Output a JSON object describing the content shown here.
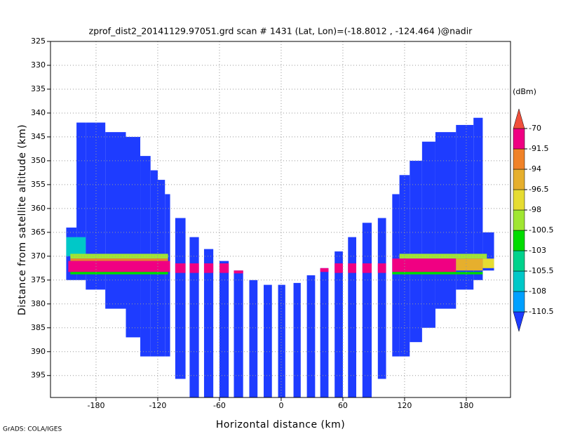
{
  "chart_data": {
    "type": "field",
    "title": "zprof_dist2_20141129.97051.grd  scan # 1431  (Lat, Lon)=(-18.8012 , -124.464 )@nadir",
    "xlabel": "Horizontal distance (km)",
    "ylabel": "Distance from satellite altitude (km)",
    "footer": "GrADS: COLA/IGES",
    "xlim": [
      -224.3,
      223
    ],
    "ylim": [
      399.6,
      325
    ],
    "xticks": [
      -180,
      -120,
      -60,
      0,
      60,
      120,
      180
    ],
    "yticks": [
      325,
      330,
      335,
      340,
      345,
      350,
      355,
      360,
      365,
      370,
      375,
      380,
      385,
      390,
      395
    ],
    "grid": true,
    "colorbar": {
      "unit": "(dBm)",
      "levels": [
        -110.5,
        -108,
        -105.5,
        -103,
        -100.5,
        -98,
        -96.5,
        -94,
        -91.5,
        -70
      ],
      "colors": [
        "#1e3cff",
        "#00a0ff",
        "#00c8c8",
        "#00d28c",
        "#00dc00",
        "#a0e632",
        "#e6dc32",
        "#e6af2d",
        "#f08228",
        "#f00082",
        "#f0503c"
      ]
    },
    "cells": [
      {
        "x0": -209,
        "x1": -199,
        "y0": 364,
        "y1": 375,
        "dbm": -115
      },
      {
        "x0": -199,
        "x1": -190,
        "y0": 342,
        "y1": 375,
        "dbm": -115
      },
      {
        "x0": -190,
        "x1": -171,
        "y0": 342,
        "y1": 377,
        "dbm": -115
      },
      {
        "x0": -171,
        "x1": -151,
        "y0": 344,
        "y1": 381,
        "dbm": -115
      },
      {
        "x0": -151,
        "x1": -137,
        "y0": 345,
        "y1": 387,
        "dbm": -115
      },
      {
        "x0": -137,
        "x1": -127,
        "y0": 349,
        "y1": 391,
        "dbm": -115
      },
      {
        "x0": -127,
        "x1": -120,
        "y0": 352,
        "y1": 391,
        "dbm": -115
      },
      {
        "x0": -120,
        "x1": -113,
        "y0": 354,
        "y1": 391,
        "dbm": -115
      },
      {
        "x0": -113,
        "x1": -108,
        "y0": 357,
        "y1": 391,
        "dbm": -115
      },
      {
        "x0": -103,
        "x1": -93,
        "y0": 362,
        "y1": 395.7,
        "dbm": -115
      },
      {
        "x0": -89,
        "x1": -80,
        "y0": 366,
        "y1": 399.6,
        "dbm": -115
      },
      {
        "x0": -75,
        "x1": -66,
        "y0": 368.5,
        "y1": 399.6,
        "dbm": -115
      },
      {
        "x0": -60,
        "x1": -51,
        "y0": 371,
        "y1": 399.6,
        "dbm": -115
      },
      {
        "x0": -46,
        "x1": -37,
        "y0": 373,
        "y1": 399.6,
        "dbm": -115
      },
      {
        "x0": -31,
        "x1": -23,
        "y0": 375,
        "y1": 399.6,
        "dbm": -115
      },
      {
        "x0": -17,
        "x1": -9,
        "y0": 376,
        "y1": 399.6,
        "dbm": -115
      },
      {
        "x0": -3,
        "x1": 4,
        "y0": 376,
        "y1": 399.6,
        "dbm": -115
      },
      {
        "x0": 12,
        "x1": 19,
        "y0": 375.6,
        "y1": 399.6,
        "dbm": -115
      },
      {
        "x0": 25,
        "x1": 33,
        "y0": 374,
        "y1": 399.6,
        "dbm": -115
      },
      {
        "x0": 38,
        "x1": 46,
        "y0": 372.5,
        "y1": 399.6,
        "dbm": -115
      },
      {
        "x0": 52,
        "x1": 60,
        "y0": 369,
        "y1": 399.6,
        "dbm": -115
      },
      {
        "x0": 65,
        "x1": 73,
        "y0": 366,
        "y1": 399.6,
        "dbm": -115
      },
      {
        "x0": 79,
        "x1": 88,
        "y0": 363,
        "y1": 399.6,
        "dbm": -115
      },
      {
        "x0": 94,
        "x1": 102,
        "y0": 362,
        "y1": 395.7,
        "dbm": -115
      },
      {
        "x0": 108,
        "x1": 115,
        "y0": 357,
        "y1": 391,
        "dbm": -115
      },
      {
        "x0": 115,
        "x1": 125,
        "y0": 353,
        "y1": 391,
        "dbm": -115
      },
      {
        "x0": 125,
        "x1": 137,
        "y0": 350,
        "y1": 388,
        "dbm": -115
      },
      {
        "x0": 137,
        "x1": 150,
        "y0": 346,
        "y1": 385,
        "dbm": -115
      },
      {
        "x0": 150,
        "x1": 170,
        "y0": 344,
        "y1": 381,
        "dbm": -115
      },
      {
        "x0": 170,
        "x1": 187,
        "y0": 342.5,
        "y1": 377,
        "dbm": -115
      },
      {
        "x0": 187,
        "x1": 196,
        "y0": 341,
        "y1": 375,
        "dbm": -115
      },
      {
        "x0": 196,
        "x1": 207,
        "y0": 365,
        "y1": 373,
        "dbm": -115
      },
      {
        "x0": -209,
        "x1": -190,
        "y0": 366,
        "y1": 370,
        "dbm": -107
      },
      {
        "x0": -205,
        "x1": -110,
        "y0": 369.5,
        "y1": 370.5,
        "dbm": -99
      },
      {
        "x0": -205,
        "x1": -110,
        "y0": 370.5,
        "y1": 371,
        "dbm": -92.5
      },
      {
        "x0": -207,
        "x1": -108,
        "y0": 371,
        "y1": 373.3,
        "dbm": -90
      },
      {
        "x0": -205,
        "x1": -110,
        "y0": 373.3,
        "y1": 373.8,
        "dbm": -102
      },
      {
        "x0": -103,
        "x1": -93,
        "y0": 371.5,
        "y1": 373.5,
        "dbm": -90
      },
      {
        "x0": -89,
        "x1": -80,
        "y0": 371.5,
        "y1": 373.5,
        "dbm": -90
      },
      {
        "x0": -75,
        "x1": -66,
        "y0": 371.5,
        "y1": 373.5,
        "dbm": -90
      },
      {
        "x0": -60,
        "x1": -51,
        "y0": 371.5,
        "y1": 373.5,
        "dbm": -90
      },
      {
        "x0": -46,
        "x1": -37,
        "y0": 373,
        "y1": 373.6,
        "dbm": -90
      },
      {
        "x0": 38,
        "x1": 46,
        "y0": 372.5,
        "y1": 373.3,
        "dbm": -90
      },
      {
        "x0": 52,
        "x1": 60,
        "y0": 371.5,
        "y1": 373.5,
        "dbm": -90
      },
      {
        "x0": 65,
        "x1": 73,
        "y0": 371.5,
        "y1": 373.5,
        "dbm": -90
      },
      {
        "x0": 79,
        "x1": 88,
        "y0": 371.5,
        "y1": 373.5,
        "dbm": -90
      },
      {
        "x0": 94,
        "x1": 102,
        "y0": 371.5,
        "y1": 373.5,
        "dbm": -90
      },
      {
        "x0": 115,
        "x1": 200,
        "y0": 369.5,
        "y1": 370.5,
        "dbm": -99
      },
      {
        "x0": 108,
        "x1": 170,
        "y0": 370.5,
        "y1": 373.3,
        "dbm": -90
      },
      {
        "x0": 170,
        "x1": 196,
        "y0": 370.5,
        "y1": 373,
        "dbm": -95
      },
      {
        "x0": 196,
        "x1": 207,
        "y0": 370.5,
        "y1": 372.5,
        "dbm": -97
      },
      {
        "x0": 108,
        "x1": 196,
        "y0": 373.3,
        "y1": 373.8,
        "dbm": -102
      }
    ]
  }
}
